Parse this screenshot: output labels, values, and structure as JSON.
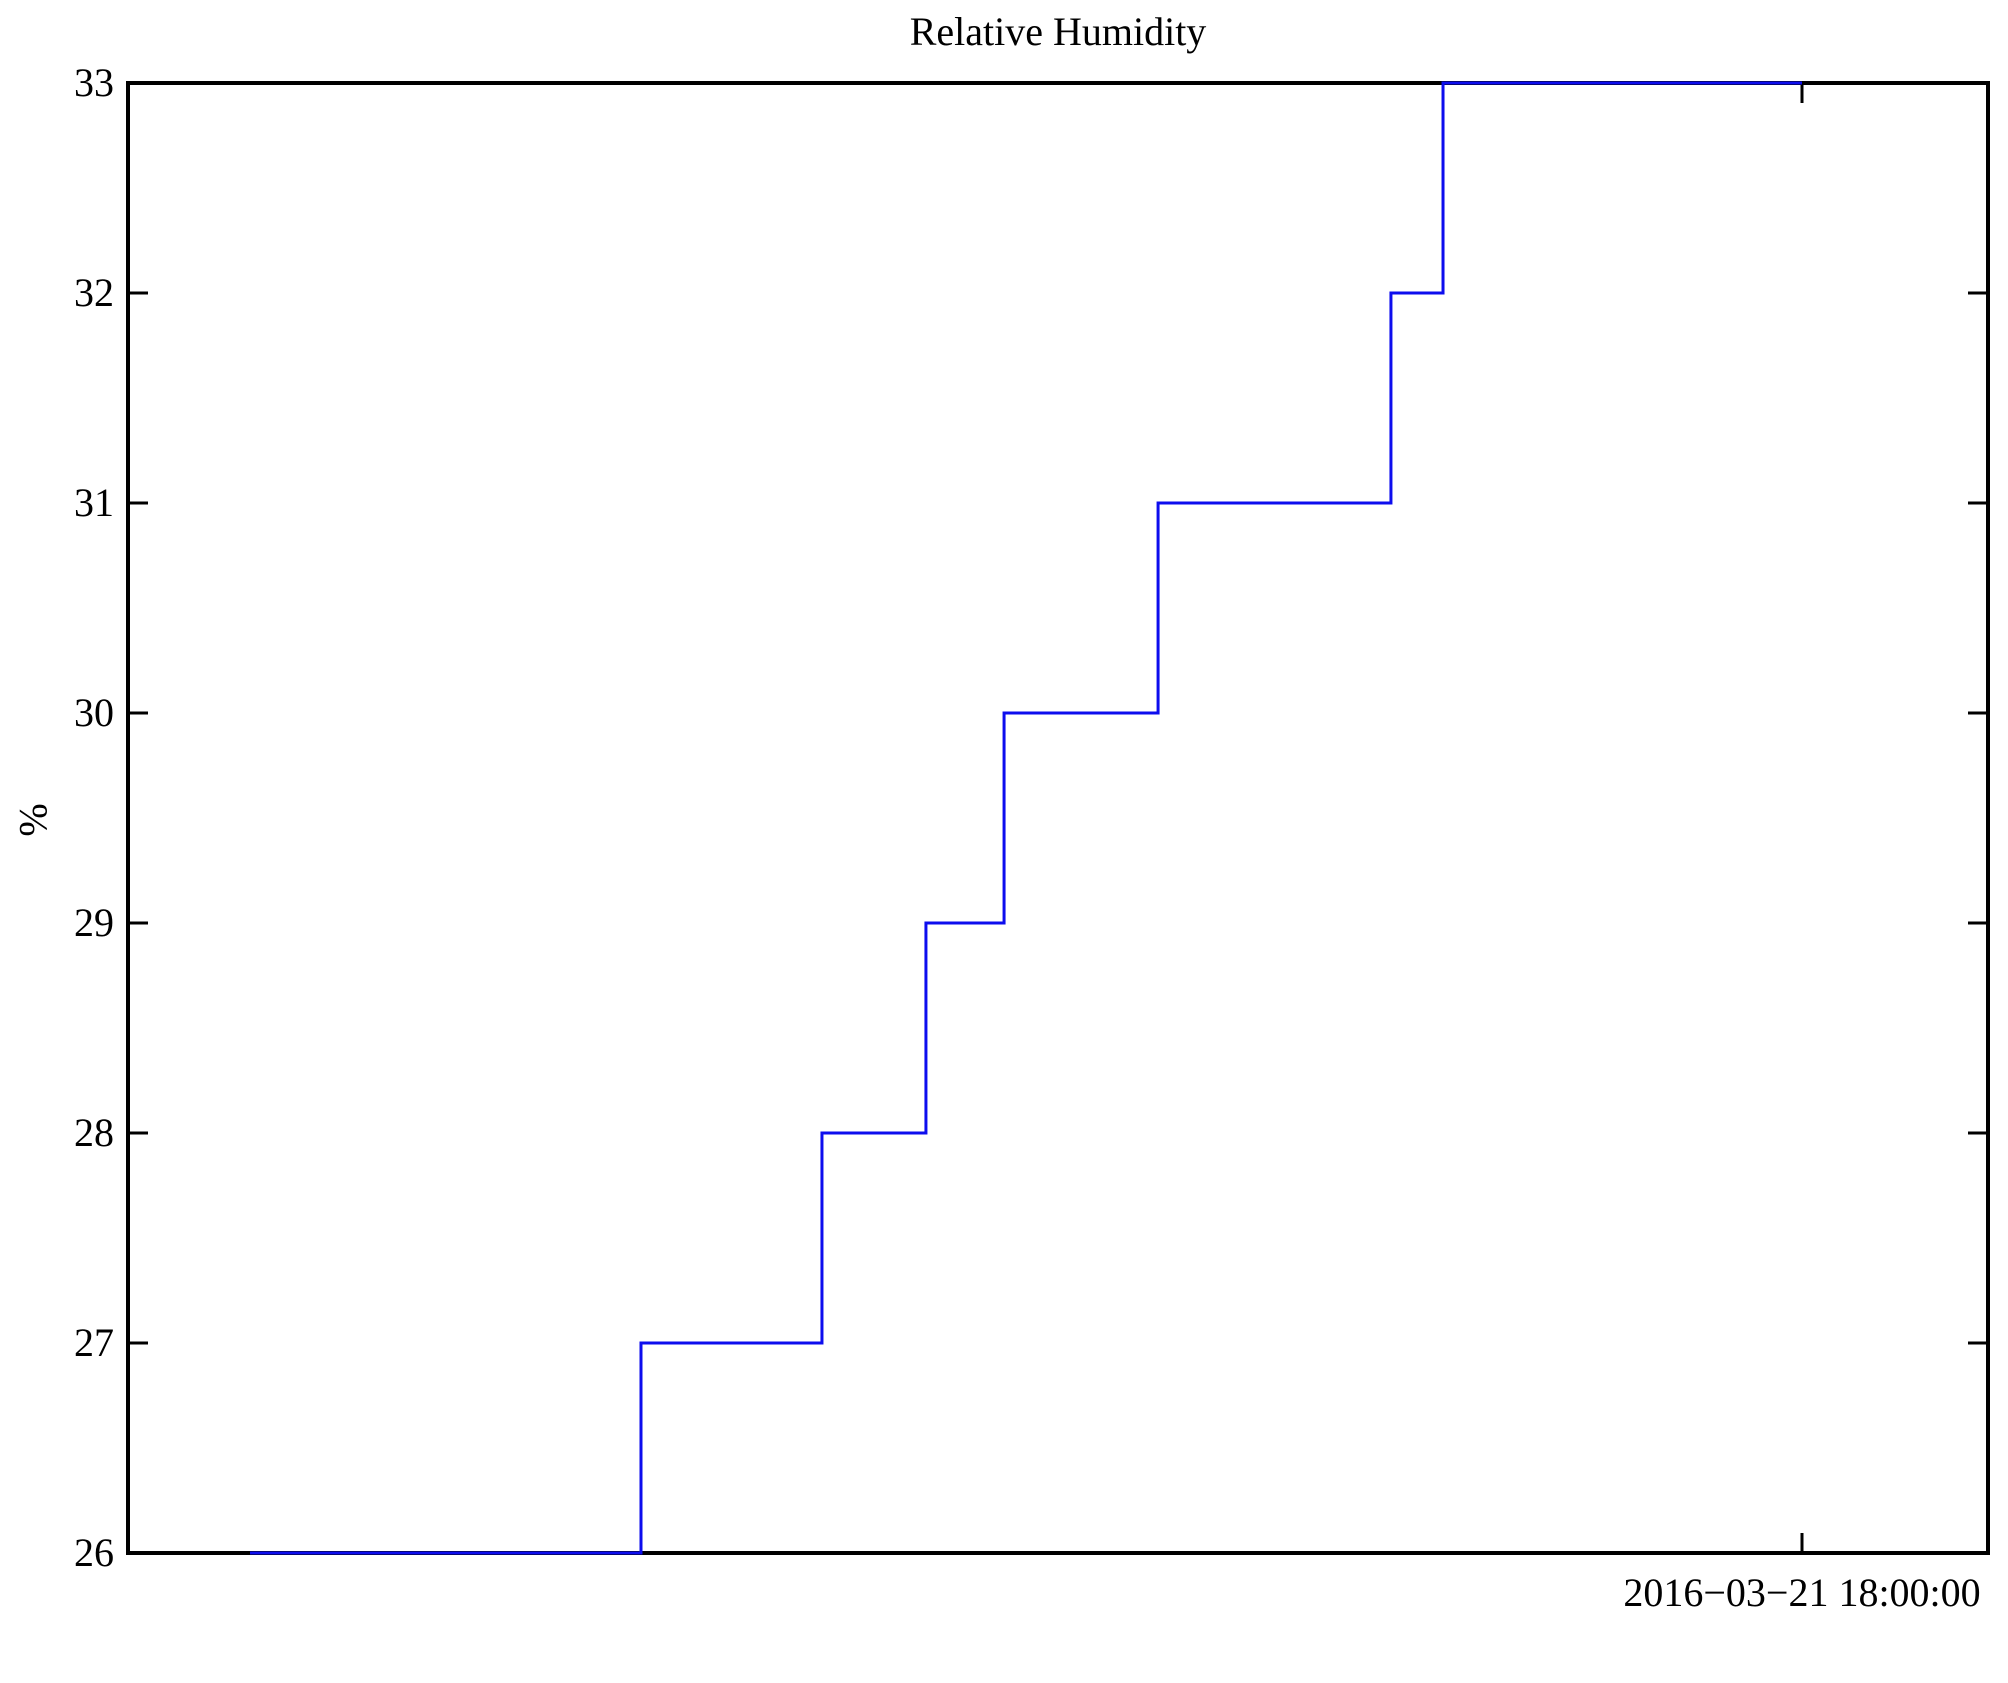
{
  "figure": {
    "background": "#ffffff"
  },
  "chart_data": {
    "type": "line",
    "line_style": "step-after",
    "title": "Relative Humidity",
    "ylabel": "%",
    "xlabel": "",
    "ylim": [
      26,
      33
    ],
    "yticks": [
      26,
      27,
      28,
      29,
      30,
      31,
      32,
      33
    ],
    "x_tick": {
      "label": "2016−03−21 18:00:00",
      "position_frac": 0.9
    },
    "grid": "off",
    "legend": "none",
    "line_color": "#0d0dee",
    "axis_color": "#000000",
    "series": [
      {
        "name": "Relative Humidity",
        "unit": "%",
        "steps": [
          {
            "from_frac": 0.0656,
            "to_frac": 0.2758,
            "value": 26
          },
          {
            "from_frac": 0.2758,
            "to_frac": 0.3731,
            "value": 27
          },
          {
            "from_frac": 0.3731,
            "to_frac": 0.429,
            "value": 28
          },
          {
            "from_frac": 0.429,
            "to_frac": 0.471,
            "value": 29
          },
          {
            "from_frac": 0.471,
            "to_frac": 0.5538,
            "value": 30
          },
          {
            "from_frac": 0.5538,
            "to_frac": 0.679,
            "value": 31
          },
          {
            "from_frac": 0.679,
            "to_frac": 0.707,
            "value": 32
          },
          {
            "from_frac": 0.707,
            "to_frac": 0.9,
            "value": 33
          }
        ]
      }
    ]
  }
}
